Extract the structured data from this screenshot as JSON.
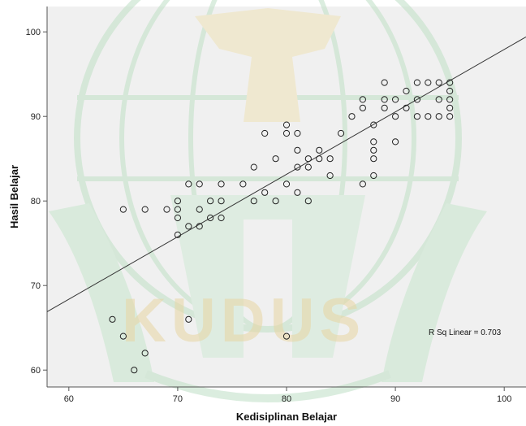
{
  "chart_data": {
    "type": "scatter",
    "xlabel": "Kedisiplinan Belajar",
    "ylabel": "Hasil Belajar",
    "xlim": [
      58,
      102
    ],
    "ylim": [
      58,
      103
    ],
    "xticks": [
      "60",
      "70",
      "80",
      "90",
      "100"
    ],
    "yticks": [
      "60",
      "70",
      "80",
      "90",
      "100"
    ],
    "grid": false,
    "fit_line": {
      "label": "R Sq Linear = 0.703",
      "x": [
        58,
        102
      ],
      "y": [
        66.9,
        99.4
      ]
    },
    "watermark": {
      "text": "KUDUS",
      "color": "#e8d6a2"
    },
    "colors": {
      "plot_bg": "#f0f0f0",
      "points": "#222222",
      "line": "#333333"
    },
    "points": [
      {
        "x": 64,
        "y": 66
      },
      {
        "x": 65,
        "y": 64
      },
      {
        "x": 65,
        "y": 79
      },
      {
        "x": 66,
        "y": 60
      },
      {
        "x": 67,
        "y": 62
      },
      {
        "x": 67,
        "y": 79
      },
      {
        "x": 69,
        "y": 79
      },
      {
        "x": 70,
        "y": 76
      },
      {
        "x": 70,
        "y": 78
      },
      {
        "x": 70,
        "y": 79
      },
      {
        "x": 70,
        "y": 80
      },
      {
        "x": 71,
        "y": 66
      },
      {
        "x": 71,
        "y": 77
      },
      {
        "x": 71,
        "y": 82
      },
      {
        "x": 72,
        "y": 77
      },
      {
        "x": 72,
        "y": 79
      },
      {
        "x": 72,
        "y": 82
      },
      {
        "x": 73,
        "y": 78
      },
      {
        "x": 73,
        "y": 80
      },
      {
        "x": 74,
        "y": 78
      },
      {
        "x": 74,
        "y": 80
      },
      {
        "x": 74,
        "y": 82
      },
      {
        "x": 76,
        "y": 82
      },
      {
        "x": 77,
        "y": 80
      },
      {
        "x": 77,
        "y": 84
      },
      {
        "x": 78,
        "y": 81
      },
      {
        "x": 78,
        "y": 88
      },
      {
        "x": 79,
        "y": 80
      },
      {
        "x": 79,
        "y": 85
      },
      {
        "x": 80,
        "y": 64
      },
      {
        "x": 80,
        "y": 82
      },
      {
        "x": 80,
        "y": 88
      },
      {
        "x": 80,
        "y": 89
      },
      {
        "x": 81,
        "y": 81
      },
      {
        "x": 81,
        "y": 84
      },
      {
        "x": 81,
        "y": 86
      },
      {
        "x": 81,
        "y": 88
      },
      {
        "x": 82,
        "y": 80
      },
      {
        "x": 82,
        "y": 84
      },
      {
        "x": 82,
        "y": 85
      },
      {
        "x": 83,
        "y": 85
      },
      {
        "x": 83,
        "y": 86
      },
      {
        "x": 84,
        "y": 83
      },
      {
        "x": 84,
        "y": 85
      },
      {
        "x": 85,
        "y": 88
      },
      {
        "x": 86,
        "y": 90
      },
      {
        "x": 87,
        "y": 82
      },
      {
        "x": 87,
        "y": 91
      },
      {
        "x": 87,
        "y": 92
      },
      {
        "x": 88,
        "y": 83
      },
      {
        "x": 88,
        "y": 85
      },
      {
        "x": 88,
        "y": 86
      },
      {
        "x": 88,
        "y": 87
      },
      {
        "x": 88,
        "y": 89
      },
      {
        "x": 89,
        "y": 91
      },
      {
        "x": 89,
        "y": 92
      },
      {
        "x": 89,
        "y": 94
      },
      {
        "x": 90,
        "y": 87
      },
      {
        "x": 90,
        "y": 90
      },
      {
        "x": 90,
        "y": 92
      },
      {
        "x": 91,
        "y": 91
      },
      {
        "x": 91,
        "y": 93
      },
      {
        "x": 92,
        "y": 90
      },
      {
        "x": 92,
        "y": 92
      },
      {
        "x": 92,
        "y": 94
      },
      {
        "x": 93,
        "y": 90
      },
      {
        "x": 93,
        "y": 94
      },
      {
        "x": 94,
        "y": 90
      },
      {
        "x": 94,
        "y": 92
      },
      {
        "x": 94,
        "y": 94
      },
      {
        "x": 95,
        "y": 90
      },
      {
        "x": 95,
        "y": 91
      },
      {
        "x": 95,
        "y": 92
      },
      {
        "x": 95,
        "y": 93
      },
      {
        "x": 95,
        "y": 94
      }
    ]
  }
}
